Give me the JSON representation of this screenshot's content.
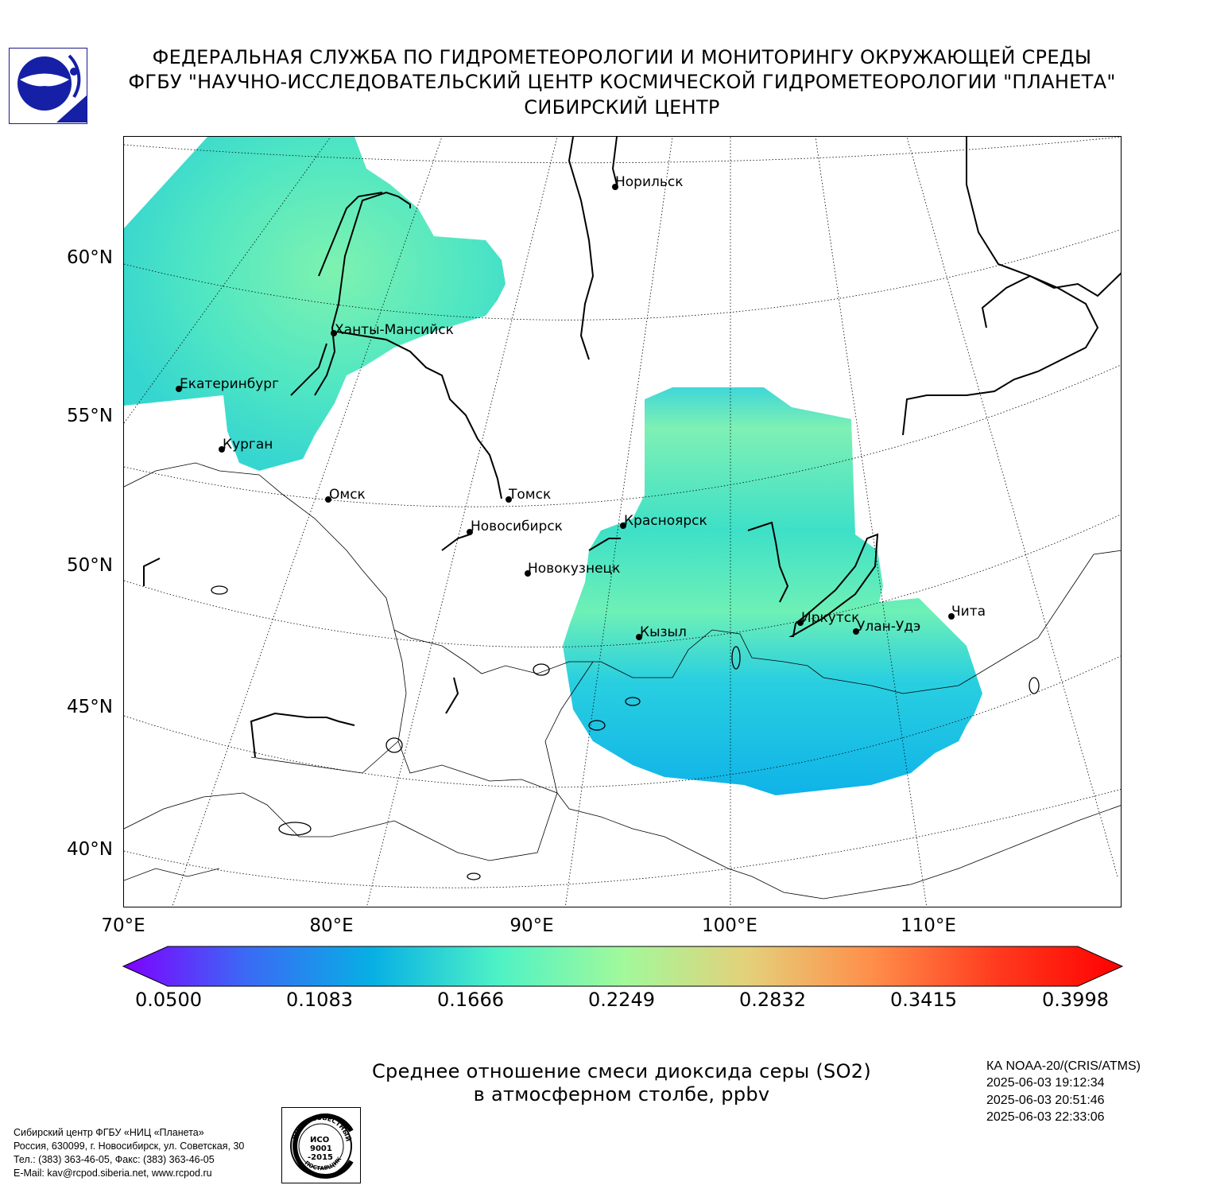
{
  "header": {
    "line1": "ФЕДЕРАЛЬНАЯ СЛУЖБА ПО ГИДРОМЕТЕОРОЛОГИИ И МОНИТОРИНГУ ОКРУЖАЮЩЕЙ СРЕДЫ",
    "line2": "ФГБУ \"НАУЧНО-ИССЛЕДОВАТЕЛЬСКИЙ ЦЕНТР КОСМИЧЕСКОЙ ГИДРОМЕТЕОРОЛОГИИ \"ПЛАНЕТА\"",
    "line3": "СИБИРСКИЙ ЦЕНТР"
  },
  "map": {
    "lat_labels": [
      "60°N",
      "55°N",
      "50°N",
      "45°N",
      "40°N"
    ],
    "lon_labels": [
      "70°E",
      "80°E",
      "90°E",
      "100°E",
      "110°E"
    ],
    "cities": [
      {
        "name": "Норильск"
      },
      {
        "name": "Ханты-Мансийск"
      },
      {
        "name": "Екатеринбург"
      },
      {
        "name": "Курган"
      },
      {
        "name": "Омск"
      },
      {
        "name": "Томск"
      },
      {
        "name": "Новосибирск"
      },
      {
        "name": "Красноярск"
      },
      {
        "name": "Новокузнецк"
      },
      {
        "name": "Кызыл"
      },
      {
        "name": "Иркутск"
      },
      {
        "name": "Улан-Удэ"
      },
      {
        "name": "Чита"
      }
    ]
  },
  "colorbar": {
    "ticks": [
      "0.0500",
      "0.1083",
      "0.1666",
      "0.2249",
      "0.2832",
      "0.3415",
      "0.3998"
    ],
    "min": 0.05,
    "max": 0.3998,
    "colors": [
      "#7f00ff",
      "#3a6bf5",
      "#07b0e4",
      "#4ef2c6",
      "#a1f99b",
      "#e4d07a",
      "#ff8e4a",
      "#ff3a1e",
      "#ff0000"
    ]
  },
  "caption": {
    "line1": "Среднее отношение смеси диоксида серы (SO2)",
    "line2": "в атмосферном столбе, ppbv"
  },
  "satellite": {
    "name": "КА NOAA-20/(CRIS/ATMS)",
    "times": [
      "2025-06-03 19:12:34",
      "2025-06-03 20:51:46",
      "2025-06-03 22:33:06"
    ]
  },
  "address": {
    "lines": [
      "Сибирский центр ФГБУ «НИЦ «Планета»",
      "Россия, 630099, г. Новосибирск, ул. Советская, 30",
      "Тел.: (383) 363-46-05, Факс: (383) 363-46-05",
      "E-Mail: kav@rcpod.siberia.net, www.rcpod.ru"
    ]
  },
  "cert_stamp": {
    "top_text": "ДОБРОСОВЕСТНЫЙ",
    "center_text": [
      "ИСО",
      "9001",
      "-2015"
    ],
    "bottom_text": "ПОСТАВЩИК"
  }
}
